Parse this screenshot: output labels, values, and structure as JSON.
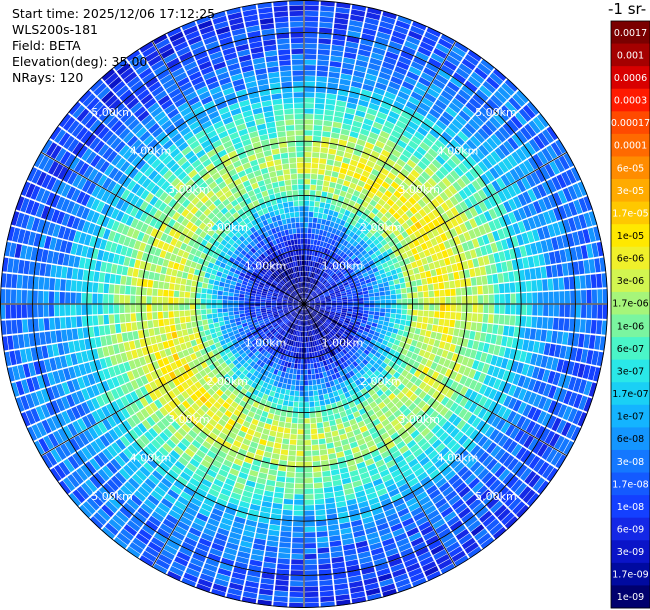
{
  "info": {
    "start_time": "Start time: 2025/12/06 17:12:25",
    "instrument": "WLS200s-181",
    "field": "Field: BETA",
    "elevation": "Elevation(deg): 35.00",
    "nrays": "NRays: 120"
  },
  "units_partial": "-1 sr-",
  "chart_data": {
    "type": "heatmap",
    "projection": "polar",
    "title": "",
    "field": "BETA",
    "elevation_deg": 35.0,
    "n_rays": 120,
    "max_range_km": 5.6,
    "range_rings_km": [
      1,
      2,
      3,
      4,
      5
    ],
    "range_ring_labels": [
      "1.00km",
      "2.00km",
      "3.00km",
      "4.00km",
      "5.00km"
    ],
    "radial_spokes_deg": [
      0,
      30,
      60,
      90,
      120,
      150,
      180,
      210,
      240,
      270,
      300,
      330
    ],
    "range_profile": [
      {
        "range_km": 0.0,
        "log10_beta": -8.7
      },
      {
        "range_km": 0.5,
        "log10_beta": -8.4
      },
      {
        "range_km": 1.0,
        "log10_beta": -8.1
      },
      {
        "range_km": 1.5,
        "log10_beta": -7.2
      },
      {
        "range_km": 2.0,
        "log10_beta": -6.0
      },
      {
        "range_km": 2.5,
        "log10_beta": -5.5
      },
      {
        "range_km": 3.0,
        "log10_beta": -5.7
      },
      {
        "range_km": 3.5,
        "log10_beta": -6.2
      },
      {
        "range_km": 4.0,
        "log10_beta": -6.8
      },
      {
        "range_km": 4.5,
        "log10_beta": -7.4
      },
      {
        "range_km": 5.0,
        "log10_beta": -7.6
      },
      {
        "range_km": 5.6,
        "log10_beta": -7.8
      }
    ],
    "colorbar": {
      "ticks": [
        "0.0017",
        "0.001",
        "0.0006",
        "0.0003",
        "0.00017",
        "0.0001",
        "6e-05",
        "3e-05",
        "1.7e-05",
        "1e-05",
        "6e-06",
        "3e-06",
        "1.7e-06",
        "1e-06",
        "6e-07",
        "3e-07",
        "1.7e-07",
        "1e-07",
        "6e-08",
        "3e-08",
        "1.7e-08",
        "1e-08",
        "6e-09",
        "3e-09",
        "1.7e-09",
        "1e-09"
      ],
      "colors": [
        "#7a0000",
        "#a50000",
        "#d80000",
        "#ff1a00",
        "#ff4a00",
        "#ff6a00",
        "#ff8c00",
        "#ffab00",
        "#ffc800",
        "#ffe800",
        "#f0f02a",
        "#d2f550",
        "#a6f57a",
        "#7af5a0",
        "#4af5c8",
        "#2ae8e8",
        "#1ad0f5",
        "#14b4ff",
        "#1496ff",
        "#1478ff",
        "#145aff",
        "#1440ff",
        "#1428e6",
        "#0a14c8",
        "#000aa0",
        "#00006e"
      ],
      "white_label_indices": [
        0,
        1,
        2,
        3,
        4,
        5,
        6,
        7,
        8,
        19,
        20,
        21,
        22,
        23,
        24,
        25
      ]
    }
  }
}
